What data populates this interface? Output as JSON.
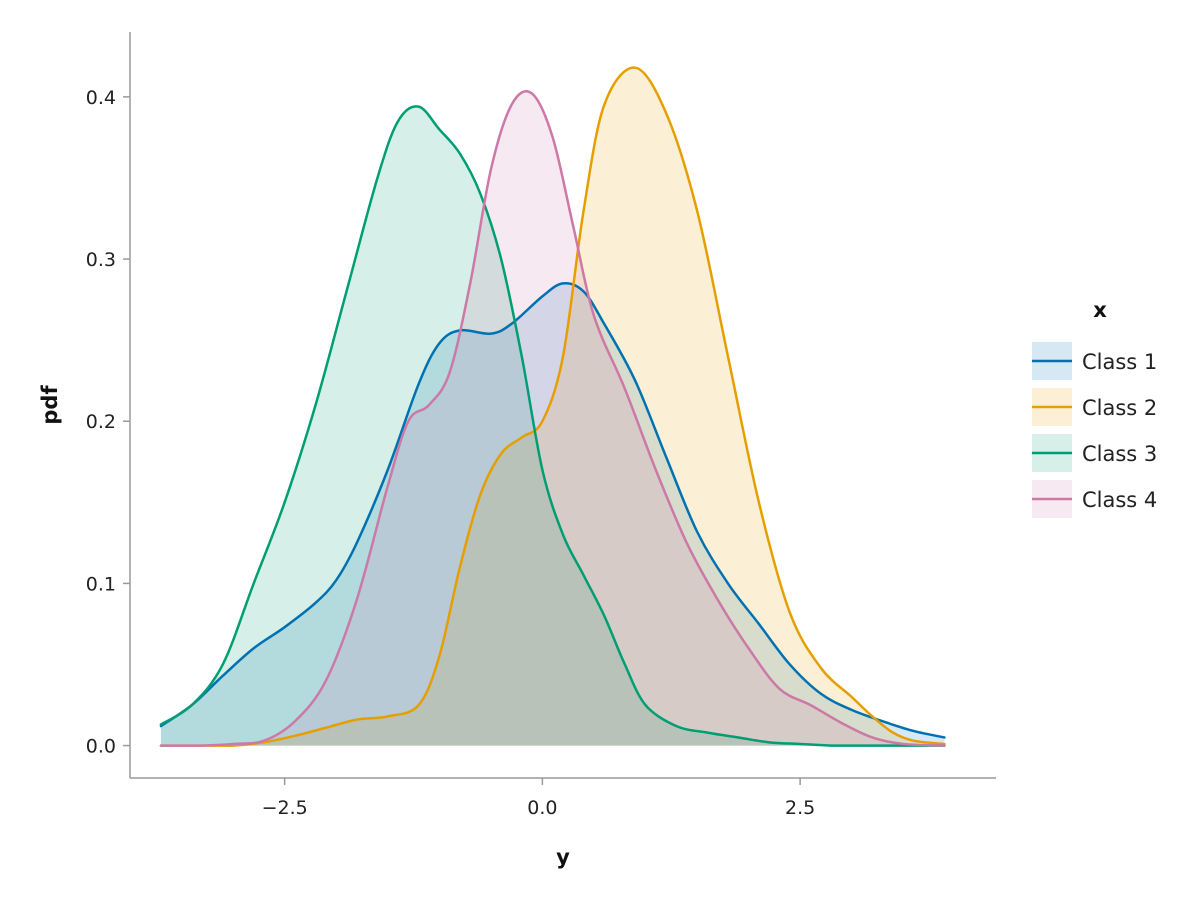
{
  "chart_data": {
    "type": "area",
    "xlabel": "y",
    "ylabel": "pdf",
    "xlim": [
      -4.0,
      4.4
    ],
    "ylim": [
      -0.02,
      0.44
    ],
    "x_ticks": [
      -2.5,
      0.0,
      2.5
    ],
    "x_tick_labels": [
      "−2.5",
      "0.0",
      "2.5"
    ],
    "y_ticks": [
      0.0,
      0.1,
      0.2,
      0.3,
      0.4
    ],
    "y_tick_labels": [
      "0.0",
      "0.1",
      "0.2",
      "0.3",
      "0.4"
    ],
    "grid": false,
    "legend": {
      "title": "x",
      "position": "right"
    },
    "series": [
      {
        "name": "Class 1",
        "color": "#0072B2",
        "x": [
          -3.7,
          -3.4,
          -3.1,
          -2.8,
          -2.5,
          -2.2,
          -2.0,
          -1.8,
          -1.5,
          -1.2,
          -1.0,
          -0.8,
          -0.5,
          -0.3,
          0.0,
          0.2,
          0.4,
          0.6,
          0.9,
          1.2,
          1.5,
          1.8,
          2.1,
          2.4,
          2.7,
          3.0,
          3.3,
          3.6,
          3.9
        ],
        "y": [
          0.012,
          0.025,
          0.043,
          0.06,
          0.073,
          0.088,
          0.102,
          0.125,
          0.17,
          0.223,
          0.248,
          0.256,
          0.254,
          0.26,
          0.277,
          0.285,
          0.28,
          0.26,
          0.225,
          0.178,
          0.132,
          0.1,
          0.075,
          0.05,
          0.032,
          0.022,
          0.015,
          0.009,
          0.005
        ]
      },
      {
        "name": "Class 2",
        "color": "#E69F00",
        "x": [
          -3.7,
          -3.3,
          -3.0,
          -2.7,
          -2.4,
          -2.1,
          -1.8,
          -1.5,
          -1.2,
          -1.0,
          -0.8,
          -0.6,
          -0.4,
          -0.2,
          0.0,
          0.2,
          0.4,
          0.6,
          0.9,
          1.2,
          1.5,
          1.8,
          2.1,
          2.4,
          2.7,
          3.0,
          3.2,
          3.4,
          3.6,
          3.9
        ],
        "y": [
          0.0,
          0.0,
          0.0,
          0.002,
          0.006,
          0.011,
          0.016,
          0.018,
          0.025,
          0.055,
          0.11,
          0.155,
          0.18,
          0.19,
          0.2,
          0.24,
          0.33,
          0.395,
          0.418,
          0.39,
          0.33,
          0.24,
          0.15,
          0.082,
          0.048,
          0.03,
          0.018,
          0.008,
          0.003,
          0.001
        ]
      },
      {
        "name": "Class 3",
        "color": "#009E73",
        "x": [
          -3.7,
          -3.4,
          -3.1,
          -2.8,
          -2.5,
          -2.2,
          -1.9,
          -1.6,
          -1.4,
          -1.2,
          -1.0,
          -0.8,
          -0.6,
          -0.4,
          -0.2,
          0.0,
          0.2,
          0.4,
          0.6,
          0.8,
          1.0,
          1.3,
          1.6,
          1.9,
          2.2,
          2.5,
          2.8,
          3.2,
          3.6,
          3.9
        ],
        "y": [
          0.013,
          0.025,
          0.05,
          0.1,
          0.15,
          0.21,
          0.28,
          0.35,
          0.385,
          0.394,
          0.38,
          0.365,
          0.34,
          0.3,
          0.24,
          0.17,
          0.13,
          0.105,
          0.08,
          0.05,
          0.025,
          0.012,
          0.008,
          0.005,
          0.002,
          0.001,
          0.0,
          0.0,
          0.0,
          0.0
        ]
      },
      {
        "name": "Class 4",
        "color": "#CC79A7",
        "x": [
          -3.7,
          -3.3,
          -3.0,
          -2.7,
          -2.4,
          -2.1,
          -1.8,
          -1.5,
          -1.3,
          -1.1,
          -0.9,
          -0.7,
          -0.5,
          -0.3,
          -0.1,
          0.1,
          0.3,
          0.5,
          0.8,
          1.1,
          1.4,
          1.7,
          2.0,
          2.3,
          2.6,
          2.9,
          3.2,
          3.5,
          3.9
        ],
        "y": [
          0.0,
          0.0,
          0.001,
          0.003,
          0.015,
          0.04,
          0.09,
          0.16,
          0.2,
          0.21,
          0.23,
          0.285,
          0.355,
          0.395,
          0.402,
          0.375,
          0.32,
          0.265,
          0.22,
          0.17,
          0.125,
          0.09,
          0.06,
          0.035,
          0.025,
          0.014,
          0.005,
          0.001,
          0.0
        ]
      }
    ]
  }
}
